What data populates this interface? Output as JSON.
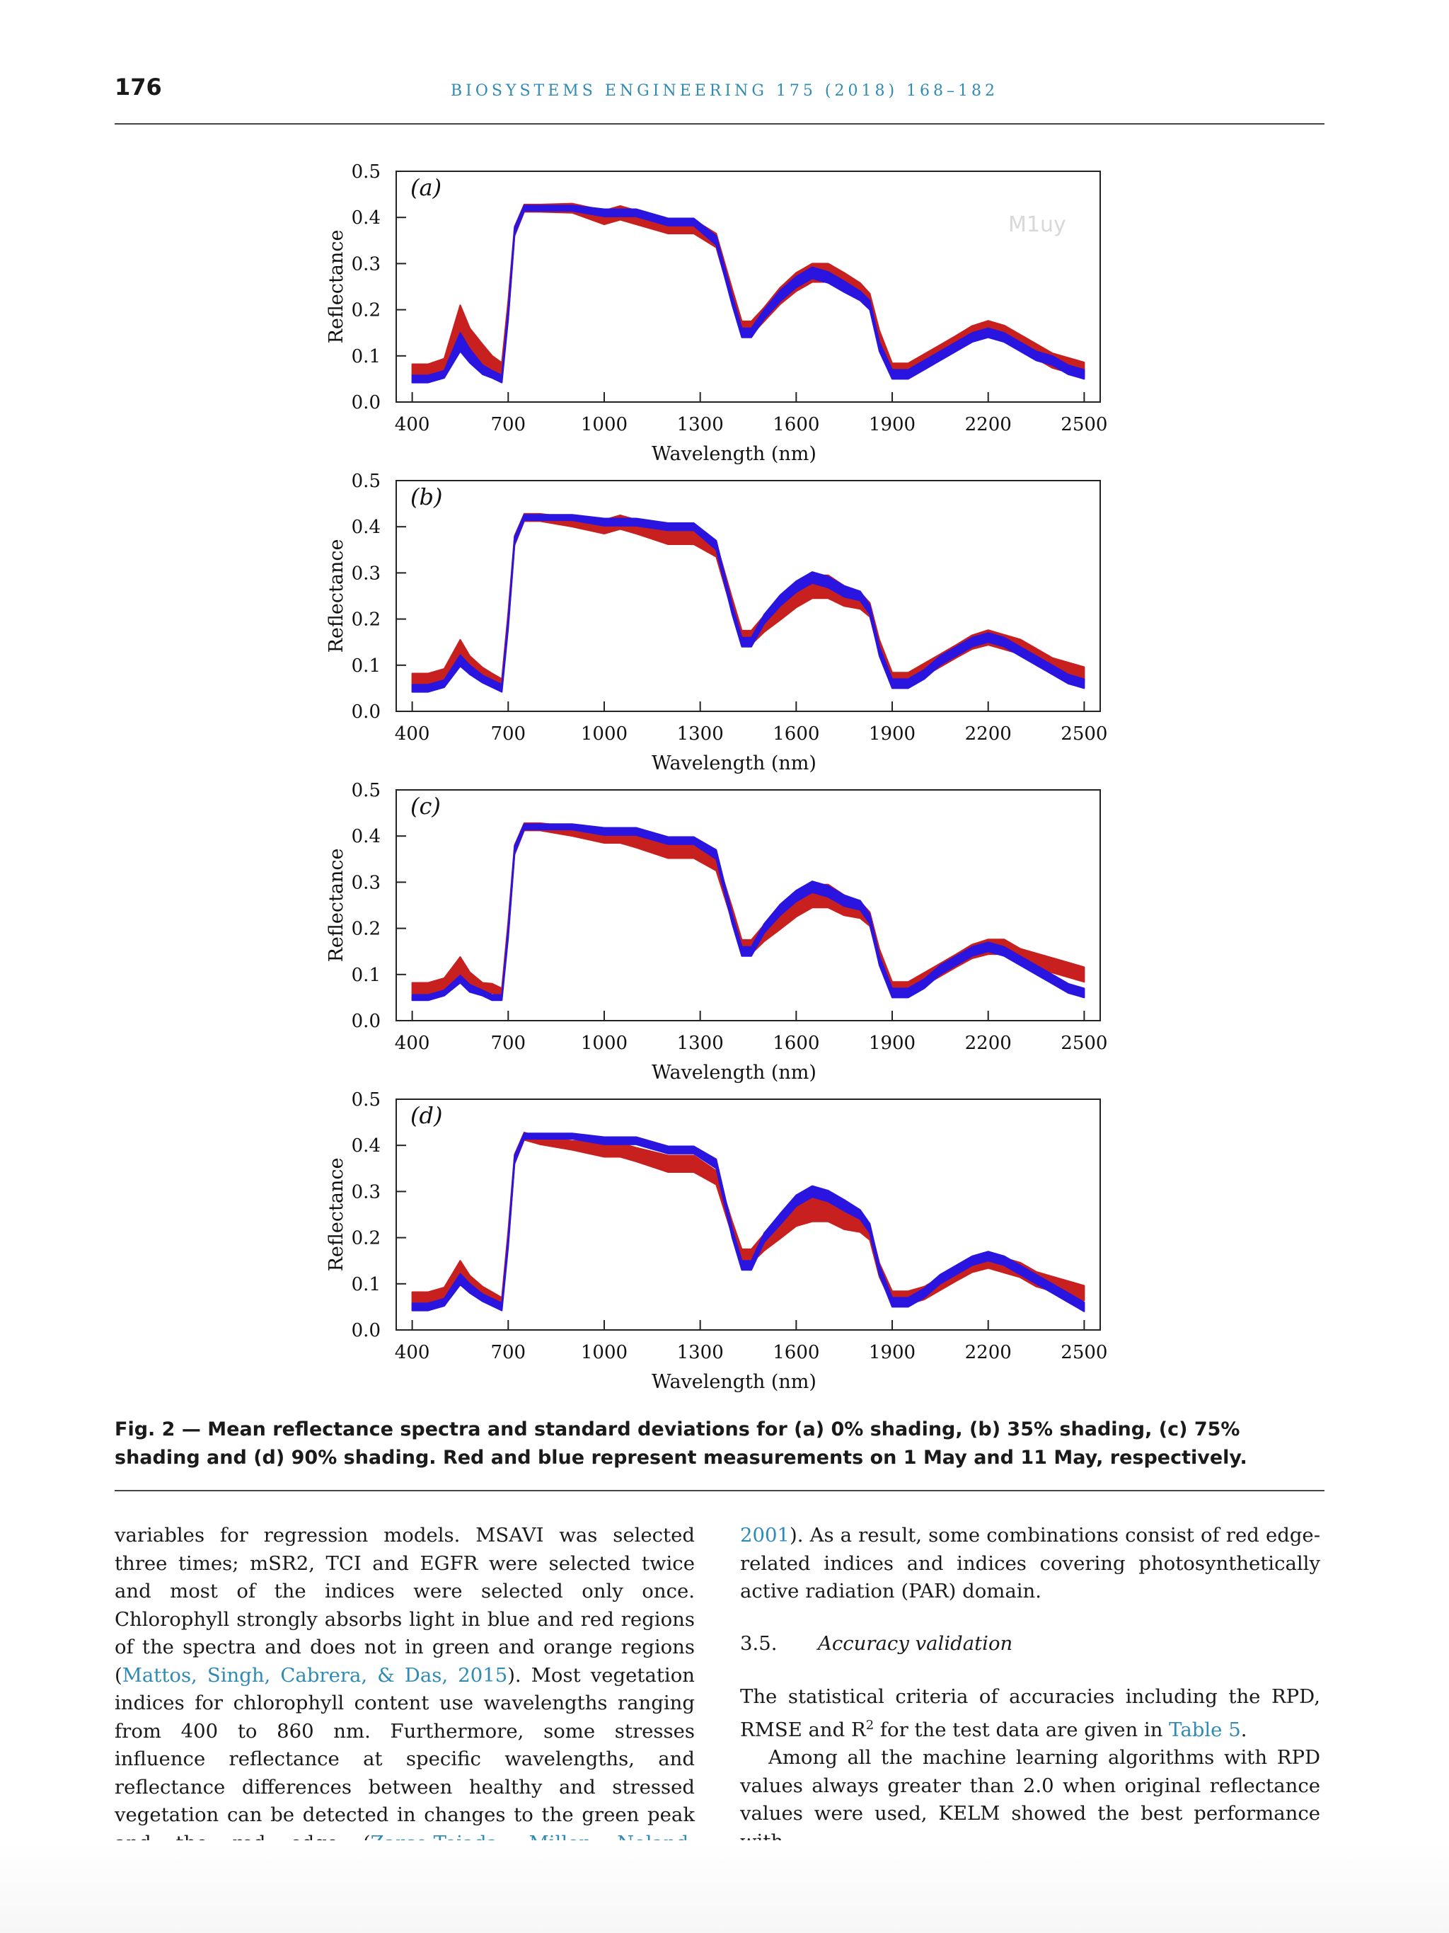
{
  "header": {
    "page_number": "176",
    "journal": "BIOSYSTEMS ENGINEERING 175 (2018) 168–182"
  },
  "figure": {
    "watermark": "M1uy",
    "panels": [
      {
        "label": "(a)"
      },
      {
        "label": "(b)"
      },
      {
        "label": "(c)"
      },
      {
        "label": "(d)"
      }
    ],
    "xlabel": "Wavelength (nm)",
    "ylabel": "Reflectance",
    "xticks": [
      "400",
      "700",
      "1000",
      "1300",
      "1600",
      "1900",
      "2200",
      "2500"
    ],
    "yticks": [
      "0.0",
      "0.1",
      "0.2",
      "0.3",
      "0.4",
      "0.5"
    ],
    "colors": {
      "may1": "#c8201e",
      "may11": "#2a15e0"
    }
  },
  "chart_data": [
    {
      "type": "area",
      "panel": "(a)",
      "xlabel": "Wavelength (nm)",
      "ylabel": "Reflectance",
      "xlim": [
        350,
        2550
      ],
      "ylim": [
        0,
        0.5
      ],
      "x": [
        400,
        450,
        500,
        550,
        580,
        620,
        650,
        680,
        700,
        720,
        750,
        800,
        900,
        1000,
        1050,
        1100,
        1200,
        1280,
        1350,
        1400,
        1430,
        1460,
        1500,
        1550,
        1600,
        1650,
        1700,
        1750,
        1800,
        1830,
        1860,
        1900,
        1950,
        2000,
        2050,
        2100,
        2150,
        2200,
        2250,
        2300,
        2350,
        2400,
        2450,
        2500
      ],
      "series": [
        {
          "name": "1 May",
          "values": [
            0.07,
            0.07,
            0.08,
            0.17,
            0.13,
            0.1,
            0.08,
            0.07,
            0.2,
            0.37,
            0.42,
            0.42,
            0.42,
            0.4,
            0.41,
            0.4,
            0.38,
            0.38,
            0.35,
            0.23,
            0.16,
            0.16,
            0.19,
            0.23,
            0.26,
            0.28,
            0.28,
            0.26,
            0.24,
            0.22,
            0.14,
            0.07,
            0.07,
            0.09,
            0.11,
            0.13,
            0.15,
            0.16,
            0.15,
            0.13,
            0.11,
            0.09,
            0.08,
            0.07
          ],
          "std": [
            0.012,
            0.012,
            0.014,
            0.04,
            0.03,
            0.025,
            0.02,
            0.015,
            0.02,
            0.01,
            0.008,
            0.008,
            0.01,
            0.015,
            0.015,
            0.015,
            0.015,
            0.015,
            0.015,
            0.015,
            0.015,
            0.015,
            0.015,
            0.018,
            0.02,
            0.02,
            0.02,
            0.02,
            0.018,
            0.015,
            0.015,
            0.014,
            0.014,
            0.014,
            0.014,
            0.014,
            0.015,
            0.016,
            0.016,
            0.016,
            0.016,
            0.016,
            0.016,
            0.016
          ]
        },
        {
          "name": "11 May",
          "values": [
            0.05,
            0.05,
            0.06,
            0.13,
            0.1,
            0.07,
            0.06,
            0.05,
            0.19,
            0.37,
            0.42,
            0.42,
            0.42,
            0.41,
            0.41,
            0.41,
            0.39,
            0.39,
            0.35,
            0.22,
            0.15,
            0.15,
            0.19,
            0.23,
            0.26,
            0.28,
            0.27,
            0.25,
            0.23,
            0.21,
            0.12,
            0.06,
            0.06,
            0.08,
            0.1,
            0.12,
            0.14,
            0.15,
            0.14,
            0.12,
            0.1,
            0.09,
            0.07,
            0.06
          ],
          "std": [
            0.008,
            0.008,
            0.008,
            0.02,
            0.015,
            0.01,
            0.008,
            0.008,
            0.01,
            0.008,
            0.006,
            0.006,
            0.006,
            0.008,
            0.008,
            0.008,
            0.008,
            0.008,
            0.01,
            0.01,
            0.01,
            0.01,
            0.01,
            0.012,
            0.012,
            0.012,
            0.012,
            0.012,
            0.01,
            0.01,
            0.01,
            0.01,
            0.01,
            0.01,
            0.01,
            0.01,
            0.01,
            0.01,
            0.01,
            0.01,
            0.01,
            0.01,
            0.01,
            0.01
          ]
        }
      ]
    },
    {
      "type": "area",
      "panel": "(b)",
      "xlabel": "Wavelength (nm)",
      "ylabel": "Reflectance",
      "xlim": [
        350,
        2550
      ],
      "ylim": [
        0,
        0.5
      ],
      "x": [
        400,
        450,
        500,
        550,
        580,
        620,
        650,
        680,
        700,
        720,
        750,
        800,
        900,
        1000,
        1050,
        1100,
        1200,
        1280,
        1350,
        1400,
        1430,
        1460,
        1500,
        1550,
        1600,
        1650,
        1700,
        1750,
        1800,
        1830,
        1860,
        1900,
        1950,
        2000,
        2050,
        2100,
        2150,
        2200,
        2250,
        2300,
        2350,
        2400,
        2450,
        2500
      ],
      "series": [
        {
          "name": "1 May",
          "values": [
            0.07,
            0.07,
            0.08,
            0.13,
            0.1,
            0.08,
            0.07,
            0.06,
            0.2,
            0.37,
            0.42,
            0.42,
            0.41,
            0.4,
            0.41,
            0.4,
            0.38,
            0.38,
            0.35,
            0.23,
            0.16,
            0.16,
            0.19,
            0.22,
            0.25,
            0.27,
            0.27,
            0.25,
            0.24,
            0.22,
            0.14,
            0.07,
            0.07,
            0.09,
            0.11,
            0.13,
            0.15,
            0.16,
            0.15,
            0.14,
            0.12,
            0.1,
            0.09,
            0.08
          ],
          "std": [
            0.012,
            0.012,
            0.012,
            0.025,
            0.02,
            0.015,
            0.012,
            0.01,
            0.015,
            0.01,
            0.008,
            0.008,
            0.01,
            0.015,
            0.015,
            0.015,
            0.018,
            0.018,
            0.015,
            0.015,
            0.015,
            0.015,
            0.018,
            0.022,
            0.025,
            0.025,
            0.025,
            0.022,
            0.018,
            0.015,
            0.015,
            0.014,
            0.014,
            0.014,
            0.014,
            0.014,
            0.015,
            0.016,
            0.016,
            0.016,
            0.016,
            0.016,
            0.016,
            0.016
          ]
        },
        {
          "name": "11 May",
          "values": [
            0.05,
            0.05,
            0.06,
            0.11,
            0.09,
            0.07,
            0.06,
            0.05,
            0.19,
            0.37,
            0.42,
            0.42,
            0.42,
            0.41,
            0.41,
            0.41,
            0.4,
            0.4,
            0.36,
            0.22,
            0.15,
            0.15,
            0.2,
            0.24,
            0.27,
            0.29,
            0.28,
            0.26,
            0.25,
            0.22,
            0.13,
            0.06,
            0.06,
            0.08,
            0.11,
            0.13,
            0.15,
            0.16,
            0.15,
            0.13,
            0.11,
            0.09,
            0.07,
            0.06
          ],
          "std": [
            0.008,
            0.008,
            0.008,
            0.012,
            0.01,
            0.008,
            0.008,
            0.008,
            0.01,
            0.008,
            0.006,
            0.006,
            0.006,
            0.008,
            0.008,
            0.008,
            0.008,
            0.008,
            0.01,
            0.01,
            0.01,
            0.01,
            0.01,
            0.012,
            0.012,
            0.012,
            0.012,
            0.012,
            0.01,
            0.01,
            0.01,
            0.01,
            0.01,
            0.01,
            0.01,
            0.01,
            0.01,
            0.01,
            0.01,
            0.01,
            0.01,
            0.01,
            0.01,
            0.01
          ]
        }
      ]
    },
    {
      "type": "area",
      "panel": "(c)",
      "xlabel": "Wavelength (nm)",
      "ylabel": "Reflectance",
      "xlim": [
        350,
        2550
      ],
      "ylim": [
        0,
        0.5
      ],
      "x": [
        400,
        450,
        500,
        550,
        580,
        620,
        650,
        680,
        700,
        720,
        750,
        800,
        900,
        1000,
        1050,
        1100,
        1200,
        1280,
        1350,
        1400,
        1430,
        1460,
        1500,
        1550,
        1600,
        1650,
        1700,
        1750,
        1800,
        1830,
        1860,
        1900,
        1950,
        2000,
        2050,
        2100,
        2150,
        2200,
        2250,
        2300,
        2350,
        2400,
        2450,
        2500
      ],
      "series": [
        {
          "name": "1 May",
          "values": [
            0.07,
            0.07,
            0.08,
            0.12,
            0.09,
            0.07,
            0.07,
            0.06,
            0.2,
            0.37,
            0.42,
            0.42,
            0.41,
            0.4,
            0.4,
            0.39,
            0.37,
            0.37,
            0.34,
            0.23,
            0.16,
            0.16,
            0.19,
            0.22,
            0.25,
            0.27,
            0.27,
            0.25,
            0.24,
            0.22,
            0.14,
            0.07,
            0.07,
            0.09,
            0.11,
            0.13,
            0.15,
            0.16,
            0.16,
            0.14,
            0.13,
            0.12,
            0.11,
            0.1
          ],
          "std": [
            0.012,
            0.012,
            0.012,
            0.018,
            0.015,
            0.012,
            0.01,
            0.01,
            0.015,
            0.01,
            0.008,
            0.008,
            0.01,
            0.015,
            0.015,
            0.015,
            0.018,
            0.018,
            0.015,
            0.015,
            0.015,
            0.015,
            0.018,
            0.022,
            0.025,
            0.025,
            0.025,
            0.022,
            0.018,
            0.015,
            0.015,
            0.014,
            0.014,
            0.014,
            0.014,
            0.014,
            0.015,
            0.016,
            0.016,
            0.016,
            0.016,
            0.016,
            0.016,
            0.016
          ]
        },
        {
          "name": "11 May",
          "values": [
            0.05,
            0.05,
            0.06,
            0.09,
            0.07,
            0.06,
            0.05,
            0.05,
            0.19,
            0.37,
            0.42,
            0.42,
            0.42,
            0.41,
            0.41,
            0.41,
            0.39,
            0.39,
            0.36,
            0.22,
            0.15,
            0.15,
            0.2,
            0.24,
            0.27,
            0.29,
            0.28,
            0.26,
            0.25,
            0.22,
            0.13,
            0.06,
            0.06,
            0.08,
            0.11,
            0.13,
            0.15,
            0.16,
            0.15,
            0.13,
            0.11,
            0.09,
            0.07,
            0.06
          ],
          "std": [
            0.006,
            0.006,
            0.006,
            0.008,
            0.008,
            0.006,
            0.006,
            0.006,
            0.01,
            0.008,
            0.006,
            0.006,
            0.006,
            0.008,
            0.008,
            0.008,
            0.008,
            0.008,
            0.01,
            0.01,
            0.01,
            0.01,
            0.01,
            0.012,
            0.012,
            0.012,
            0.012,
            0.012,
            0.01,
            0.01,
            0.01,
            0.01,
            0.01,
            0.01,
            0.01,
            0.01,
            0.01,
            0.01,
            0.01,
            0.01,
            0.01,
            0.01,
            0.01,
            0.01
          ]
        }
      ]
    },
    {
      "type": "area",
      "panel": "(d)",
      "xlabel": "Wavelength (nm)",
      "ylabel": "Reflectance",
      "xlim": [
        350,
        2550
      ],
      "ylim": [
        0,
        0.5
      ],
      "x": [
        400,
        450,
        500,
        550,
        580,
        620,
        650,
        680,
        700,
        720,
        750,
        800,
        900,
        1000,
        1050,
        1100,
        1200,
        1280,
        1350,
        1400,
        1430,
        1460,
        1500,
        1550,
        1600,
        1650,
        1700,
        1750,
        1800,
        1830,
        1860,
        1900,
        1950,
        2000,
        2050,
        2100,
        2150,
        2200,
        2250,
        2300,
        2350,
        2400,
        2450,
        2500
      ],
      "series": [
        {
          "name": "1 May",
          "values": [
            0.07,
            0.07,
            0.08,
            0.13,
            0.1,
            0.08,
            0.07,
            0.06,
            0.2,
            0.37,
            0.42,
            0.41,
            0.4,
            0.39,
            0.39,
            0.38,
            0.36,
            0.36,
            0.33,
            0.22,
            0.16,
            0.16,
            0.19,
            0.22,
            0.25,
            0.26,
            0.26,
            0.24,
            0.23,
            0.21,
            0.13,
            0.07,
            0.07,
            0.08,
            0.1,
            0.12,
            0.14,
            0.15,
            0.14,
            0.13,
            0.11,
            0.1,
            0.09,
            0.08
          ],
          "std": [
            0.012,
            0.012,
            0.012,
            0.02,
            0.018,
            0.014,
            0.012,
            0.01,
            0.015,
            0.01,
            0.008,
            0.008,
            0.01,
            0.015,
            0.015,
            0.015,
            0.018,
            0.018,
            0.015,
            0.015,
            0.015,
            0.015,
            0.018,
            0.022,
            0.025,
            0.025,
            0.025,
            0.022,
            0.018,
            0.015,
            0.015,
            0.014,
            0.014,
            0.014,
            0.014,
            0.014,
            0.015,
            0.016,
            0.016,
            0.016,
            0.016,
            0.016,
            0.016,
            0.016
          ]
        },
        {
          "name": "11 May",
          "values": [
            0.05,
            0.05,
            0.06,
            0.11,
            0.09,
            0.07,
            0.06,
            0.05,
            0.19,
            0.37,
            0.42,
            0.42,
            0.42,
            0.41,
            0.41,
            0.41,
            0.39,
            0.39,
            0.36,
            0.21,
            0.14,
            0.14,
            0.2,
            0.24,
            0.28,
            0.3,
            0.29,
            0.27,
            0.25,
            0.22,
            0.13,
            0.06,
            0.06,
            0.08,
            0.11,
            0.13,
            0.15,
            0.16,
            0.15,
            0.13,
            0.11,
            0.09,
            0.07,
            0.05
          ],
          "std": [
            0.008,
            0.008,
            0.008,
            0.012,
            0.01,
            0.008,
            0.008,
            0.008,
            0.01,
            0.008,
            0.006,
            0.006,
            0.006,
            0.008,
            0.008,
            0.008,
            0.008,
            0.008,
            0.01,
            0.01,
            0.01,
            0.01,
            0.01,
            0.012,
            0.012,
            0.012,
            0.012,
            0.012,
            0.01,
            0.01,
            0.01,
            0.01,
            0.01,
            0.01,
            0.01,
            0.01,
            0.01,
            0.01,
            0.01,
            0.01,
            0.01,
            0.01,
            0.01,
            0.01
          ]
        }
      ]
    }
  ],
  "caption": {
    "label": "Fig. 2 — ",
    "text": "Mean reflectance spectra and standard deviations for (a) 0% shading, (b) 35% shading, (c) 75% shading and (d) 90% shading. Red and blue represent measurements on 1 May and 11 May, respectively."
  },
  "body": {
    "left": {
      "t1": "variables for regression models. MSAVI was selected three times; mSR2, TCI and EGFR were selected twice and most of the indices were selected only once. Chlorophyll strongly absorbs light in blue and red regions of the spectra and does not in green and orange regions (",
      "c1": "Mattos, Singh, Cabrera, & Das, 2015",
      "t2": "). Most vegetation indices for chlorophyll content use wavelengths ranging from 400 to 860 nm. Furthermore, some stresses influence reflectance at specific wavelengths, and reflectance differences between healthy and stressed vegetation can be detected in changes to the green peak and the red edge (",
      "c2": "Zarco-Tejada, Miller, Noland, Mohammed, & Sampson,"
    },
    "right": {
      "c3": "2001",
      "t3": "). As a result, some combinations consist of red edge-related indices and indices covering photosynthetically active radiation (PAR) domain.",
      "section_number": "3.5.",
      "section_title": "Accuracy validation",
      "p2a": "The statistical criteria of accuracies including the RPD, RMSE and R",
      "p2sup": "2",
      "p2b": " for the test data are given in ",
      "c4": "Table 5",
      "p2c": ".",
      "p3": "Among all the machine learning algorithms with RPD values always greater than 2.0 when original reflectance values were used, KELM showed the best performance with"
    }
  }
}
